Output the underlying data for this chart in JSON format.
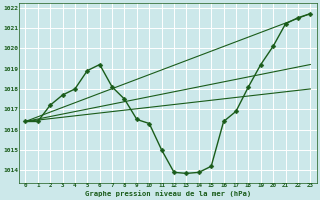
{
  "background_color": "#cce8ea",
  "grid_color": "#ffffff",
  "line_color": "#1a5c1a",
  "marker_color": "#1a5c1a",
  "xlabel": "Graphe pression niveau de la mer (hPa)",
  "xlim": [
    -0.5,
    23.5
  ],
  "ylim": [
    1013.4,
    1022.2
  ],
  "yticks": [
    1014,
    1015,
    1016,
    1017,
    1018,
    1019,
    1020,
    1021,
    1022
  ],
  "xticks": [
    0,
    1,
    2,
    3,
    4,
    5,
    6,
    7,
    8,
    9,
    10,
    11,
    12,
    13,
    14,
    15,
    16,
    17,
    18,
    19,
    20,
    21,
    22,
    23
  ],
  "main_series": {
    "x": [
      0,
      1,
      2,
      3,
      4,
      5,
      6,
      7,
      8,
      9,
      10,
      11,
      12,
      13,
      14,
      15,
      16,
      17,
      18,
      19,
      20,
      21,
      22,
      23
    ],
    "y": [
      1016.4,
      1016.4,
      1017.2,
      1017.7,
      1018.0,
      1018.9,
      1019.2,
      1018.1,
      1017.5,
      1016.5,
      1016.3,
      1015.0,
      1013.9,
      1013.85,
      1013.9,
      1014.2,
      1016.4,
      1016.9,
      1018.1,
      1019.2,
      1020.1,
      1021.2,
      1021.5,
      1021.7
    ]
  },
  "straight_lines": [
    {
      "x": [
        0,
        23
      ],
      "y": [
        1016.4,
        1021.7
      ]
    },
    {
      "x": [
        0,
        23
      ],
      "y": [
        1016.4,
        1019.2
      ]
    },
    {
      "x": [
        0,
        23
      ],
      "y": [
        1016.4,
        1018.0
      ]
    }
  ]
}
